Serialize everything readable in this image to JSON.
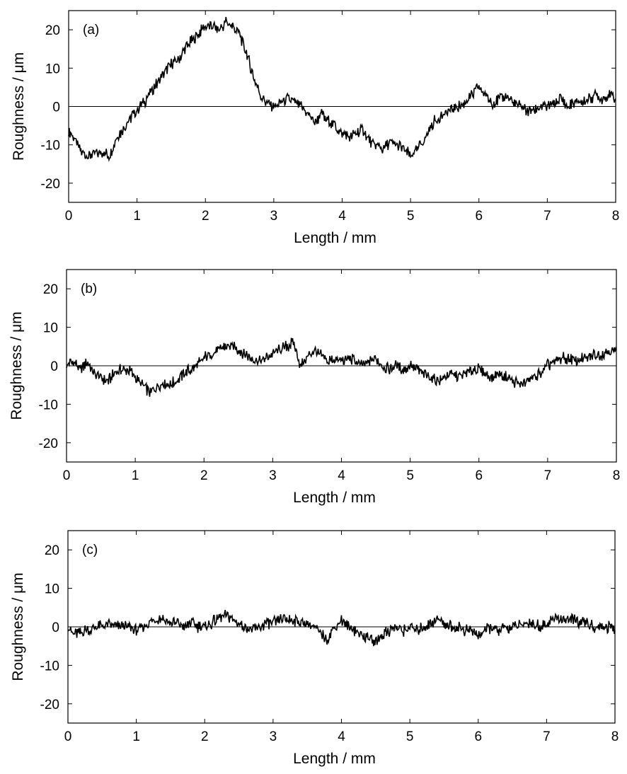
{
  "figure": {
    "panels": [
      {
        "tag": "(a)",
        "xlabel": "Length / mm",
        "ylabel": "Roughness / μm"
      },
      {
        "tag": "(b)",
        "xlabel": "Length / mm",
        "ylabel": "Roughness / μm"
      },
      {
        "tag": "(c)",
        "xlabel": "Length / mm",
        "ylabel": "Roughness / μm"
      }
    ]
  },
  "chart_data": [
    {
      "type": "line",
      "title": "",
      "annotation": "(a)",
      "xlabel": "Length / mm",
      "ylabel": "Roughness / μm",
      "xlim": [
        0,
        8
      ],
      "ylim": [
        -25,
        25
      ],
      "xticks": [
        0,
        1,
        2,
        3,
        4,
        5,
        6,
        7,
        8
      ],
      "yticks": [
        -20,
        -10,
        0,
        10,
        20
      ],
      "reference_line_y": 0,
      "grid": false,
      "line_color": "#000000",
      "series": [
        {
          "x": [
            0,
            0.1,
            0.2,
            0.3,
            0.4,
            0.5,
            0.6,
            0.7,
            0.8,
            0.9,
            1.0,
            1.1,
            1.2,
            1.3,
            1.4,
            1.5,
            1.6,
            1.7,
            1.8,
            1.9,
            2.0,
            2.1,
            2.2,
            2.3,
            2.4,
            2.5,
            2.6,
            2.7,
            2.8,
            2.9,
            3.0,
            3.1,
            3.2,
            3.3,
            3.4,
            3.5,
            3.6,
            3.7,
            3.8,
            3.9,
            4.0,
            4.1,
            4.2,
            4.3,
            4.4,
            4.5,
            4.6,
            4.7,
            4.8,
            4.9,
            5.0,
            5.1,
            5.2,
            5.3,
            5.4,
            5.5,
            5.6,
            5.7,
            5.8,
            5.9,
            6.0,
            6.1,
            6.2,
            6.3,
            6.4,
            6.5,
            6.6,
            6.7,
            6.8,
            6.9,
            7.0,
            7.1,
            7.2,
            7.3,
            7.4,
            7.5,
            7.6,
            7.7,
            7.8,
            7.9,
            8.0
          ],
          "y": [
            -6,
            -9,
            -12,
            -13,
            -12,
            -12,
            -13,
            -8,
            -6,
            -3,
            -1,
            1,
            4,
            6,
            9,
            11,
            12,
            15,
            17,
            19,
            21,
            21,
            20,
            22,
            21,
            19,
            14,
            8,
            3,
            1,
            0,
            1,
            2,
            1,
            0,
            -2,
            -4,
            -2,
            -4,
            -5,
            -7,
            -8,
            -7,
            -6,
            -9,
            -10,
            -11,
            -9,
            -10,
            -11,
            -13,
            -11,
            -9,
            -5,
            -3,
            -2,
            -1,
            0,
            1,
            3,
            5,
            3,
            1,
            2,
            3,
            1,
            0,
            -1,
            -1,
            0,
            0,
            1,
            2,
            0,
            1,
            1,
            2,
            3,
            2,
            3,
            2
          ]
        }
      ]
    },
    {
      "type": "line",
      "title": "",
      "annotation": "(b)",
      "xlabel": "Length / mm",
      "ylabel": "Roughness / μm",
      "xlim": [
        0,
        8
      ],
      "ylim": [
        -25,
        25
      ],
      "xticks": [
        0,
        1,
        2,
        3,
        4,
        5,
        6,
        7,
        8
      ],
      "yticks": [
        -20,
        -10,
        0,
        10,
        20
      ],
      "reference_line_y": 0,
      "grid": false,
      "line_color": "#000000",
      "series": [
        {
          "x": [
            0,
            0.1,
            0.2,
            0.3,
            0.4,
            0.5,
            0.6,
            0.7,
            0.8,
            0.9,
            1.0,
            1.1,
            1.2,
            1.3,
            1.4,
            1.5,
            1.6,
            1.7,
            1.8,
            1.9,
            2.0,
            2.1,
            2.2,
            2.3,
            2.4,
            2.5,
            2.6,
            2.7,
            2.8,
            2.9,
            3.0,
            3.1,
            3.2,
            3.3,
            3.4,
            3.5,
            3.6,
            3.7,
            3.8,
            3.9,
            4.0,
            4.1,
            4.2,
            4.3,
            4.4,
            4.5,
            4.6,
            4.7,
            4.8,
            4.9,
            5.0,
            5.1,
            5.2,
            5.3,
            5.4,
            5.5,
            5.6,
            5.7,
            5.8,
            5.9,
            6.0,
            6.1,
            6.2,
            6.3,
            6.4,
            6.5,
            6.6,
            6.7,
            6.8,
            6.9,
            7.0,
            7.1,
            7.2,
            7.3,
            7.4,
            7.5,
            7.6,
            7.7,
            7.8,
            7.9,
            8.0
          ],
          "y": [
            0,
            1,
            -1,
            1,
            -2,
            -3,
            -4,
            -2,
            -1,
            -1,
            -3,
            -5,
            -7,
            -6,
            -4,
            -5,
            -4,
            -2,
            -1,
            0,
            2,
            3,
            4,
            5,
            5,
            4,
            3,
            2,
            1,
            2,
            3,
            4,
            5,
            6,
            0,
            2,
            4,
            3,
            1,
            2,
            1,
            2,
            1,
            0,
            1,
            2,
            0,
            -1,
            0,
            -1,
            0,
            -1,
            -2,
            -3,
            -4,
            -3,
            -2,
            -3,
            -2,
            -1,
            -1,
            -2,
            -3,
            -2,
            -3,
            -4,
            -5,
            -4,
            -3,
            -2,
            0,
            1,
            2,
            2,
            1,
            2,
            2,
            3,
            3,
            4,
            4
          ]
        }
      ]
    },
    {
      "type": "line",
      "title": "",
      "annotation": "(c)",
      "xlabel": "Length / mm",
      "ylabel": "Roughness / μm",
      "xlim": [
        0,
        8
      ],
      "ylim": [
        -25,
        25
      ],
      "xticks": [
        0,
        1,
        2,
        3,
        4,
        5,
        6,
        7,
        8
      ],
      "yticks": [
        -20,
        -10,
        0,
        10,
        20
      ],
      "reference_line_y": 0,
      "grid": false,
      "line_color": "#000000",
      "series": [
        {
          "x": [
            0,
            0.1,
            0.2,
            0.3,
            0.4,
            0.5,
            0.6,
            0.7,
            0.8,
            0.9,
            1.0,
            1.1,
            1.2,
            1.3,
            1.4,
            1.5,
            1.6,
            1.7,
            1.8,
            1.9,
            2.0,
            2.1,
            2.2,
            2.3,
            2.4,
            2.5,
            2.6,
            2.7,
            2.8,
            2.9,
            3.0,
            3.1,
            3.2,
            3.3,
            3.4,
            3.5,
            3.6,
            3.7,
            3.8,
            3.9,
            4.0,
            4.1,
            4.2,
            4.3,
            4.4,
            4.5,
            4.6,
            4.7,
            4.8,
            4.9,
            5.0,
            5.1,
            5.2,
            5.3,
            5.4,
            5.5,
            5.6,
            5.7,
            5.8,
            5.9,
            6.0,
            6.1,
            6.2,
            6.3,
            6.4,
            6.5,
            6.6,
            6.7,
            6.8,
            6.9,
            7.0,
            7.1,
            7.2,
            7.3,
            7.4,
            7.5,
            7.6,
            7.7,
            7.8,
            7.9,
            8.0
          ],
          "y": [
            0,
            -2,
            -1,
            -1,
            0,
            0,
            1,
            0,
            0,
            0,
            -1,
            0,
            1,
            2,
            2,
            1,
            1,
            0,
            1,
            0,
            0,
            1,
            2,
            3,
            2,
            1,
            0,
            -1,
            0,
            1,
            1,
            2,
            2,
            2,
            1,
            1,
            0,
            -2,
            -3,
            0,
            2,
            0,
            -1,
            -2,
            -3,
            -4,
            -2,
            -1,
            0,
            -1,
            0,
            -1,
            0,
            1,
            2,
            1,
            0,
            0,
            -1,
            -1,
            -2,
            -1,
            0,
            -1,
            0,
            0,
            0,
            1,
            1,
            0,
            1,
            2,
            2,
            2,
            2,
            1,
            1,
            0,
            0,
            0,
            -1
          ]
        }
      ]
    }
  ]
}
